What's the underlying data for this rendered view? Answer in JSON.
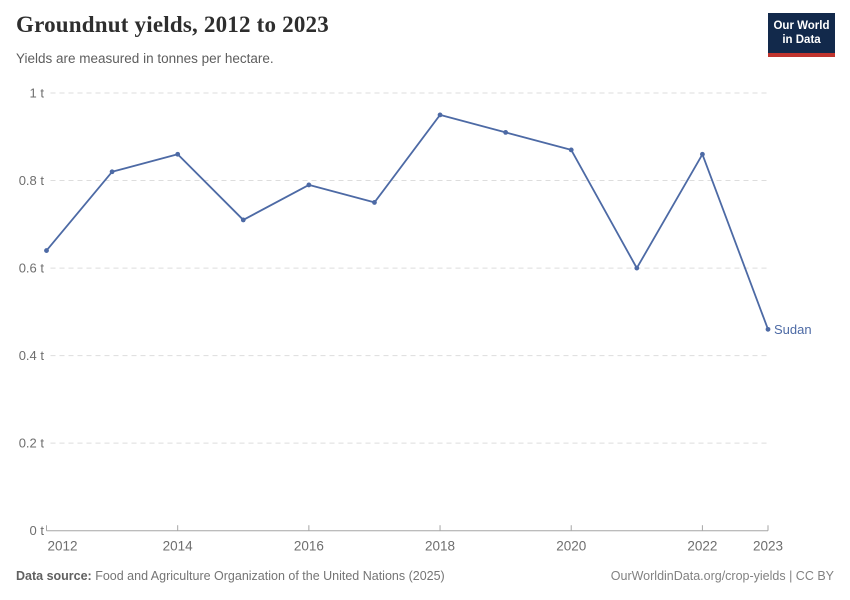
{
  "header": {
    "title": "Groundnut yields, 2012 to 2023",
    "subtitle": "Yields are measured in tonnes per hectare.",
    "logo": {
      "line1": "Our World",
      "line2": "in Data"
    }
  },
  "chart_data": {
    "type": "line",
    "title": "Groundnut yields, 2012 to 2023",
    "subtitle": "Yields are measured in tonnes per hectare.",
    "unit": "tonnes per hectare",
    "x": [
      2012,
      2013,
      2014,
      2015,
      2016,
      2017,
      2018,
      2019,
      2020,
      2021,
      2022,
      2023
    ],
    "series": [
      {
        "name": "Sudan",
        "color": "#4d6aa5",
        "values": [
          0.64,
          0.82,
          0.86,
          0.71,
          0.79,
          0.75,
          0.95,
          0.91,
          0.87,
          0.6,
          0.86,
          0.46
        ]
      }
    ],
    "end_label": "Sudan",
    "xlim": [
      2012,
      2023
    ],
    "ylim": [
      0,
      1
    ],
    "x_ticks": [
      2012,
      2014,
      2016,
      2018,
      2020,
      2022,
      2023
    ],
    "y_ticks": [
      {
        "value": 0,
        "label": "0 t"
      },
      {
        "value": 0.2,
        "label": "0.2 t"
      },
      {
        "value": 0.4,
        "label": "0.4 t"
      },
      {
        "value": 0.6,
        "label": "0.6 t"
      },
      {
        "value": 0.8,
        "label": "0.8 t"
      },
      {
        "value": 1,
        "label": "1 t"
      }
    ],
    "grid": "horizontal-dashed",
    "legend_position": "end-of-line"
  },
  "footer": {
    "source_label": "Data source:",
    "source_text": " Food and Agriculture Organization of the United Nations (2025)",
    "credit": "OurWorldinData.org/crop-yields | CC BY"
  },
  "colors": {
    "line": "#4d6aa5",
    "title_text": "#2e2e2e",
    "subtitle_text": "#5e5e5e",
    "axis_text": "#6e6e6e",
    "gridline": "#dddddd",
    "axis_line": "#a6a6a6",
    "logo_background": "#12294b",
    "logo_red_bar": "#c0342e",
    "footer_text": "#757575"
  }
}
